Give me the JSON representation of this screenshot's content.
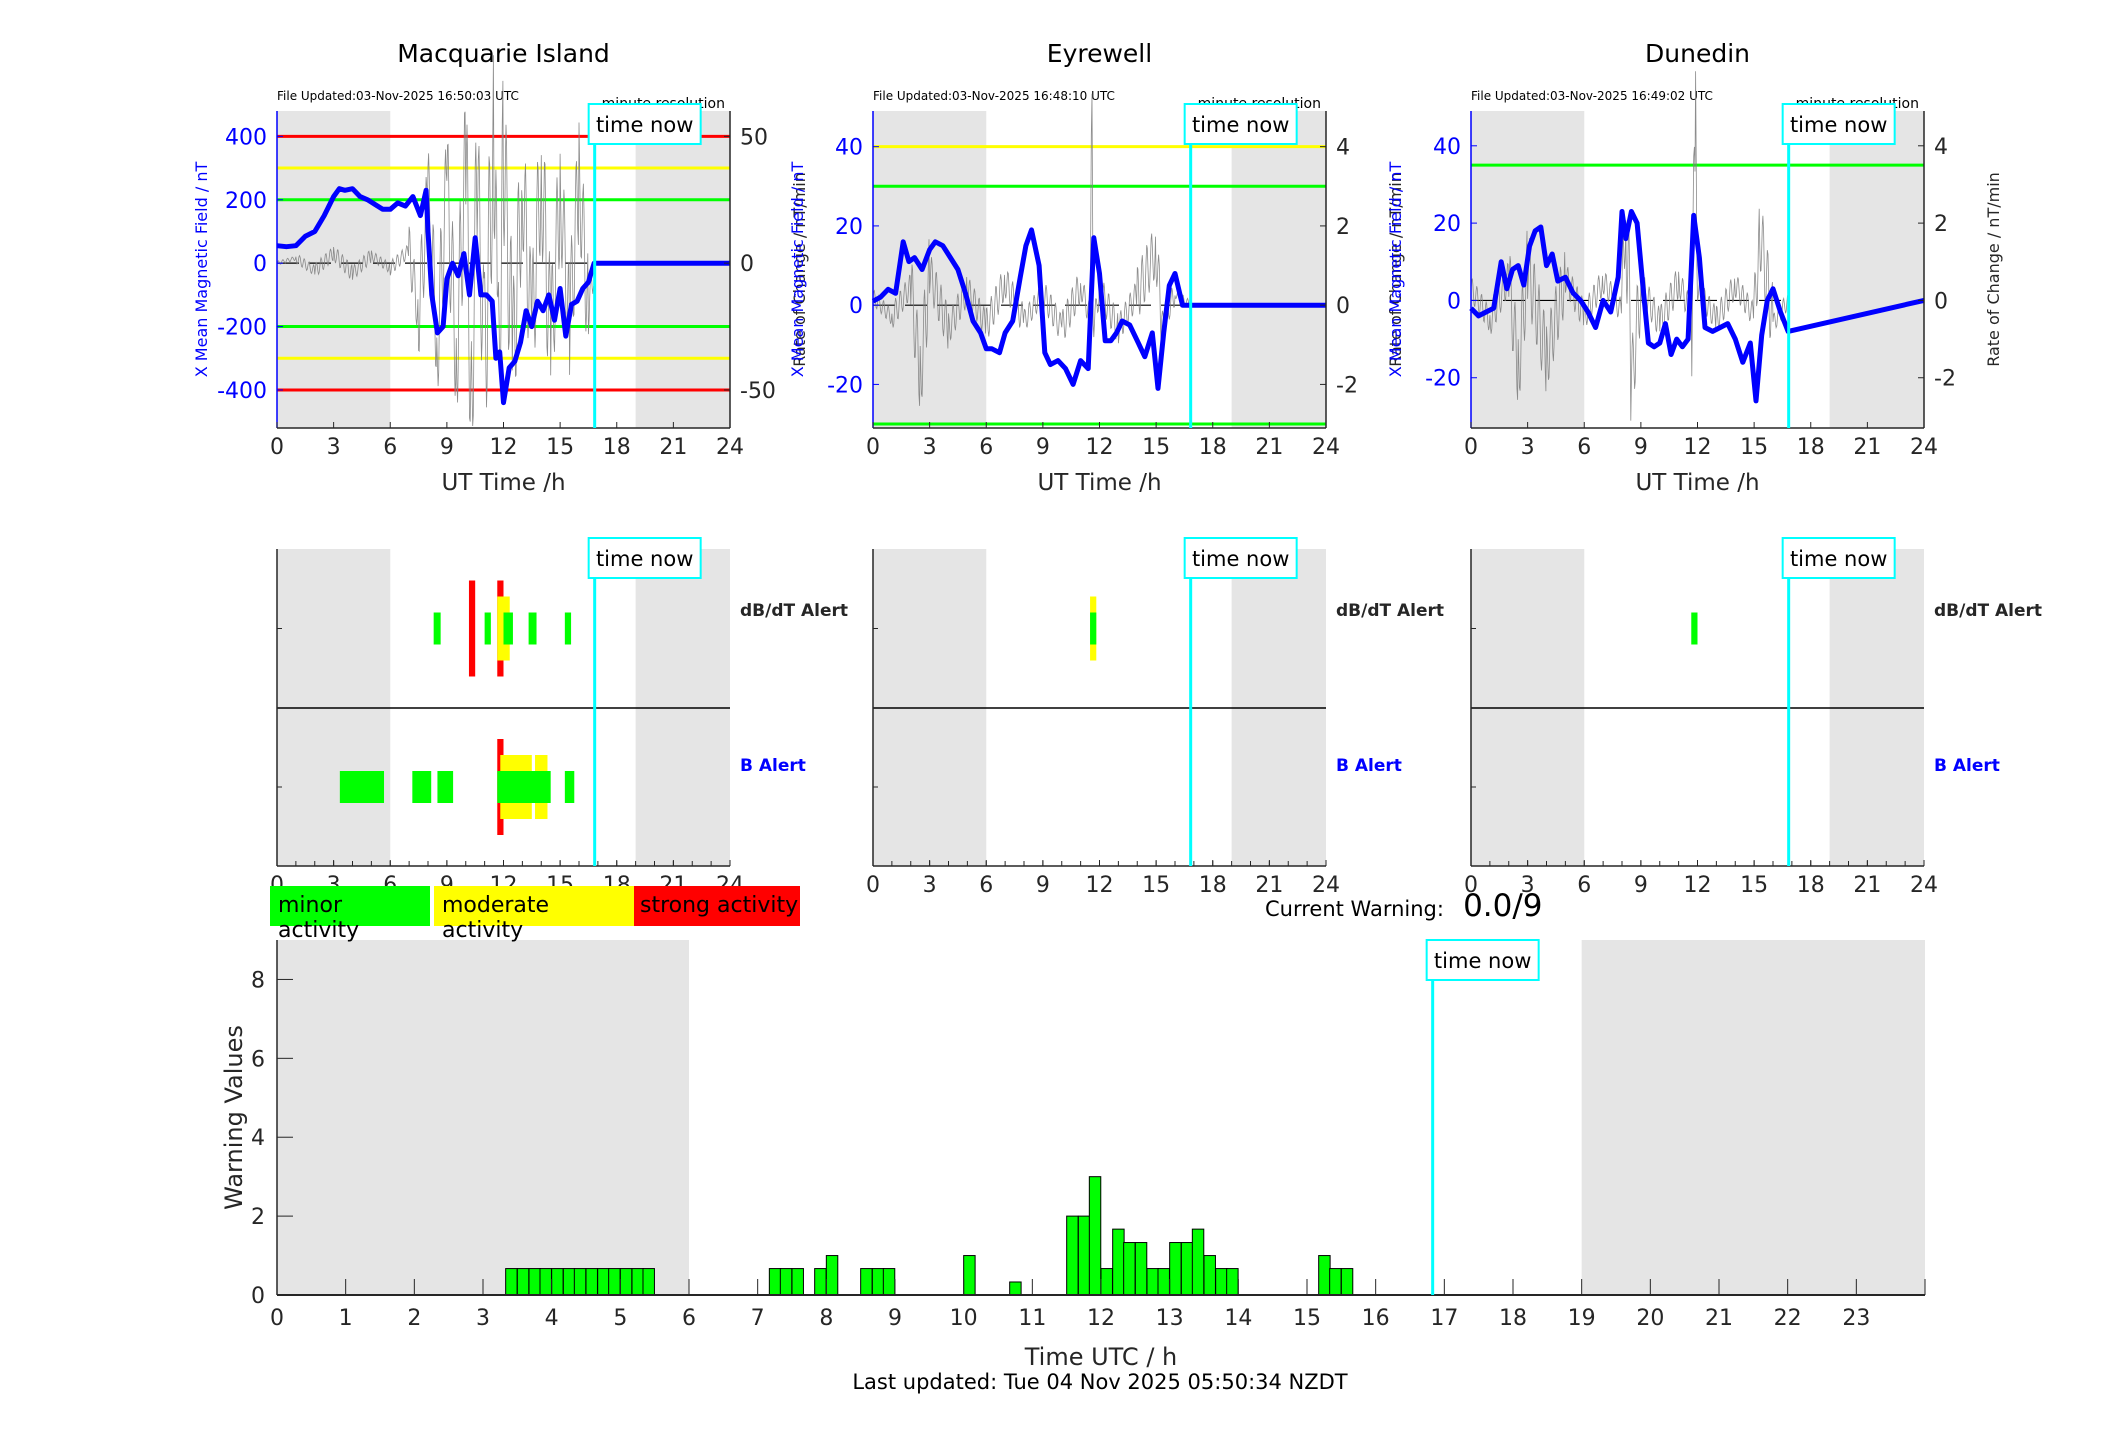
{
  "colors": {
    "field_line": "#0000ff",
    "rate_line": "#808080",
    "minor": "#00ff00",
    "moderate": "#ffff00",
    "strong": "#ff0000",
    "time_now": "#00ffff",
    "night_shade": "#e5e5e5"
  },
  "time_now_label": "time now",
  "minute_resolution_label": "minute resolution",
  "chart_data": [
    {
      "id": "macquarie-field",
      "type": "line",
      "title": "Macquarie Island",
      "file_updated": "File Updated:03-Nov-2025 16:50:03 UTC",
      "xlabel": "UT Time /h",
      "ylabel_left": "X Mean Magnetic Field / nT",
      "ylabel_right": "Rate of Change / nT/min",
      "xlim": [
        0,
        24
      ],
      "xticks": [
        "0",
        "3",
        "6",
        "9",
        "12",
        "15",
        "18",
        "21",
        "24"
      ],
      "ylim_left": [
        -520,
        480
      ],
      "yticks_left": [
        "400",
        "200",
        "0",
        "-200",
        "-400"
      ],
      "yticks_left_values": [
        400,
        200,
        0,
        -200,
        -400
      ],
      "ylim_right": [
        -65,
        60
      ],
      "yticks_right": [
        "50",
        "0",
        "-50"
      ],
      "yticks_right_values": [
        50,
        0,
        -50
      ],
      "night_shading_h": [
        [
          0,
          6
        ],
        [
          19,
          24
        ]
      ],
      "time_now_h": 16.83,
      "threshold_lines": [
        {
          "value": 400,
          "color": "strong"
        },
        {
          "value": 300,
          "color": "moderate"
        },
        {
          "value": 200,
          "color": "minor"
        },
        {
          "value": -200,
          "color": "minor"
        },
        {
          "value": -300,
          "color": "moderate"
        },
        {
          "value": -400,
          "color": "strong"
        }
      ],
      "field_series": {
        "x": [
          0,
          0.5,
          1,
          1.5,
          2,
          2.5,
          3,
          3.3,
          3.6,
          4,
          4.4,
          4.8,
          5.2,
          5.6,
          6,
          6.4,
          6.8,
          7.2,
          7.6,
          7.9,
          8.0,
          8.2,
          8.5,
          8.8,
          9.0,
          9.3,
          9.6,
          9.9,
          10.2,
          10.5,
          10.8,
          11.1,
          11.4,
          11.6,
          11.8,
          12.0,
          12.3,
          12.6,
          12.9,
          13.2,
          13.5,
          13.8,
          14.1,
          14.4,
          14.7,
          15.0,
          15.3,
          15.6,
          15.9,
          16.2,
          16.5,
          16.8,
          24
        ],
        "y": [
          55,
          52,
          55,
          85,
          100,
          150,
          210,
          235,
          230,
          235,
          210,
          200,
          185,
          170,
          170,
          190,
          180,
          210,
          150,
          230,
          100,
          -100,
          -220,
          -200,
          -50,
          0,
          -40,
          30,
          -100,
          80,
          -100,
          -100,
          -120,
          -300,
          -280,
          -440,
          -330,
          -310,
          -250,
          -150,
          -200,
          -120,
          -150,
          -100,
          -180,
          -80,
          -230,
          -130,
          -120,
          -80,
          -60,
          0,
          0
        ]
      },
      "rate_series": {
        "x": [
          0,
          1,
          2,
          3,
          4,
          5,
          6,
          7,
          7.5,
          8,
          8.5,
          9,
          9.5,
          10,
          10.3,
          10.6,
          11,
          11.5,
          11.7,
          12,
          12.5,
          13,
          13.5,
          14,
          14.5,
          15,
          15.5,
          16,
          16.5,
          16.8
        ],
        "y": [
          0,
          2,
          -3,
          4,
          -4,
          3,
          -2,
          5,
          -20,
          25,
          -30,
          30,
          -35,
          40,
          -55,
          35,
          -40,
          55,
          -50,
          45,
          -40,
          35,
          -30,
          40,
          -35,
          30,
          -25,
          35,
          -20,
          0
        ]
      }
    },
    {
      "id": "eyrewell-field",
      "type": "line",
      "title": "Eyrewell",
      "file_updated": "File Updated:03-Nov-2025 16:48:10 UTC",
      "xlabel": "UT Time /h",
      "ylabel_left": "X Mean Magnetic Field / nT",
      "ylabel_right": "Rate of Change / nT/min",
      "xlim": [
        0,
        24
      ],
      "xticks": [
        "0",
        "3",
        "6",
        "9",
        "12",
        "15",
        "18",
        "21",
        "24"
      ],
      "ylim_left": [
        -31,
        49
      ],
      "yticks_left": [
        "40",
        "20",
        "0",
        "-20"
      ],
      "yticks_left_values": [
        40,
        20,
        0,
        -20
      ],
      "ylim_right": [
        -3.1,
        4.9
      ],
      "yticks_right": [
        "4",
        "2",
        "0",
        "-2"
      ],
      "yticks_right_values": [
        4,
        2,
        0,
        -2
      ],
      "night_shading_h": [
        [
          0,
          6
        ],
        [
          19,
          24
        ]
      ],
      "time_now_h": 16.83,
      "threshold_lines": [
        {
          "value": 40,
          "color": "moderate"
        },
        {
          "value": 30,
          "color": "minor"
        },
        {
          "value": -30,
          "color": "minor"
        }
      ],
      "field_series": {
        "x": [
          0,
          0.4,
          0.8,
          1.2,
          1.6,
          1.9,
          2.2,
          2.6,
          3.0,
          3.3,
          3.7,
          4.1,
          4.5,
          4.9,
          5.3,
          5.7,
          6.0,
          6.3,
          6.7,
          7.0,
          7.4,
          7.8,
          8.1,
          8.4,
          8.8,
          9.1,
          9.4,
          9.8,
          10.2,
          10.6,
          11.0,
          11.4,
          11.7,
          12.0,
          12.3,
          12.6,
          12.9,
          13.2,
          13.6,
          14.0,
          14.4,
          14.8,
          15.1,
          15.4,
          15.7,
          16.0,
          16.4,
          16.8,
          24
        ],
        "y": [
          1,
          2,
          4,
          3,
          16,
          11,
          12,
          9,
          14,
          16,
          15,
          12,
          9,
          3,
          -4,
          -7,
          -11,
          -11,
          -12,
          -7,
          -4,
          7,
          15,
          19,
          10,
          -12,
          -15,
          -14,
          -16,
          -20,
          -14,
          -16,
          17,
          8,
          -9,
          -9,
          -7,
          -4,
          -5,
          -9,
          -13,
          -7,
          -21,
          -7,
          5,
          8,
          0,
          0,
          0
        ]
      },
      "rate_series": {
        "x": [
          0,
          1,
          2,
          2.5,
          3,
          4,
          5,
          6,
          7,
          8,
          9,
          10,
          11,
          11.5,
          11.6,
          11.7,
          12,
          13,
          14,
          15,
          15.3,
          16,
          16.8
        ],
        "y": [
          0.2,
          -0.3,
          0.5,
          -1.8,
          0.8,
          -0.6,
          0.4,
          -0.5,
          0.6,
          -0.4,
          0.3,
          -0.6,
          0.5,
          -0.3,
          4.1,
          -0.5,
          0.4,
          -0.6,
          0.3,
          1.4,
          -0.5,
          0.3,
          0
        ]
      }
    },
    {
      "id": "dunedin-field",
      "type": "line",
      "title": "Dunedin",
      "file_updated": "File Updated:03-Nov-2025 16:49:02 UTC",
      "xlabel": "UT Time /h",
      "ylabel_left": "X Mean Magnetic Field / nT",
      "ylabel_right": "Rate of Change / nT/min",
      "xlim": [
        0,
        24
      ],
      "xticks": [
        "0",
        "3",
        "6",
        "9",
        "12",
        "15",
        "18",
        "21",
        "24"
      ],
      "ylim_left": [
        -33,
        49
      ],
      "yticks_left": [
        "40",
        "20",
        "0",
        "-20"
      ],
      "yticks_left_values": [
        40,
        20,
        0,
        -20
      ],
      "ylim_right": [
        -3.3,
        4.9
      ],
      "yticks_right": [
        "4",
        "2",
        "0",
        "-2"
      ],
      "yticks_right_values": [
        4,
        2,
        0,
        -2
      ],
      "night_shading_h": [
        [
          0,
          6
        ],
        [
          19,
          24
        ]
      ],
      "time_now_h": 16.83,
      "threshold_lines": [
        {
          "value": 35,
          "color": "minor"
        }
      ],
      "field_series": {
        "x": [
          0,
          0.4,
          0.8,
          1.2,
          1.6,
          1.9,
          2.2,
          2.5,
          2.8,
          3.1,
          3.4,
          3.7,
          4.0,
          4.3,
          4.6,
          5.0,
          5.4,
          5.8,
          6.2,
          6.6,
          7.0,
          7.4,
          7.8,
          8.0,
          8.2,
          8.5,
          8.8,
          9.1,
          9.4,
          9.7,
          10.0,
          10.3,
          10.6,
          10.9,
          11.2,
          11.5,
          11.8,
          12.1,
          12.4,
          12.8,
          13.2,
          13.6,
          14.0,
          14.4,
          14.8,
          15.1,
          15.4,
          15.7,
          16.0,
          16.4,
          16.8,
          24
        ],
        "y": [
          -2,
          -4,
          -3,
          -2,
          10,
          3,
          8,
          9,
          4,
          14,
          18,
          19,
          9,
          12,
          5,
          6,
          2,
          0,
          -3,
          -7,
          0,
          -3,
          6,
          23,
          16,
          23,
          20,
          4,
          -11,
          -12,
          -11,
          -6,
          -14,
          -10,
          -12,
          -10,
          22,
          11,
          -7,
          -8,
          -7,
          -6,
          -10,
          -16,
          -11,
          -26,
          -9,
          0,
          3,
          -3,
          -8,
          0
        ]
      },
      "rate_series": {
        "x": [
          0,
          1,
          2,
          2.5,
          3,
          4,
          5,
          6,
          7,
          8,
          8.2,
          8.5,
          9,
          10,
          11,
          11.7,
          11.9,
          12,
          13,
          14,
          15,
          15.3,
          16,
          16.8
        ],
        "y": [
          0.3,
          -0.5,
          0.6,
          -1.8,
          0.9,
          -1.5,
          0.6,
          -0.4,
          0.5,
          -0.3,
          2.8,
          -2.2,
          0.4,
          -0.6,
          0.5,
          -0.4,
          4.2,
          0.3,
          -0.5,
          0.4,
          -0.4,
          1.8,
          -0.6,
          0
        ]
      }
    },
    {
      "id": "macquarie-alerts",
      "type": "table",
      "xticks": [
        "0",
        "3",
        "6",
        "9",
        "12",
        "15",
        "18",
        "21",
        "24"
      ],
      "xlim": [
        0,
        24
      ],
      "rows": [
        "dB/dT Alert",
        "B Alert"
      ],
      "dbdt_label": "dB/dT Alert",
      "b_label": "B Alert",
      "dbdt_segments": [
        {
          "start": 8.3,
          "end": 8.67,
          "level": "minor"
        },
        {
          "start": 10.17,
          "end": 10.5,
          "level": "strong"
        },
        {
          "start": 11.0,
          "end": 11.33,
          "level": "minor"
        },
        {
          "start": 11.67,
          "end": 12.0,
          "level": "strong"
        },
        {
          "start": 11.67,
          "end": 12.33,
          "level": "moderate"
        },
        {
          "start": 12.0,
          "end": 12.5,
          "level": "minor"
        },
        {
          "start": 13.33,
          "end": 13.75,
          "level": "minor"
        },
        {
          "start": 15.25,
          "end": 15.58,
          "level": "minor"
        }
      ],
      "b_segments": [
        {
          "start": 3.33,
          "end": 5.67,
          "level": "minor"
        },
        {
          "start": 7.17,
          "end": 8.17,
          "level": "minor"
        },
        {
          "start": 8.5,
          "end": 9.33,
          "level": "minor"
        },
        {
          "start": 11.67,
          "end": 12.0,
          "level": "strong"
        },
        {
          "start": 11.83,
          "end": 13.5,
          "level": "moderate"
        },
        {
          "start": 13.67,
          "end": 14.33,
          "level": "moderate"
        },
        {
          "start": 11.67,
          "end": 14.5,
          "level": "minor"
        },
        {
          "start": 15.25,
          "end": 15.75,
          "level": "minor"
        }
      ],
      "night_shading_h": [
        [
          0,
          6
        ],
        [
          19,
          24
        ]
      ],
      "time_now_h": 16.83
    },
    {
      "id": "eyrewell-alerts",
      "type": "table",
      "xticks": [
        "0",
        "3",
        "6",
        "9",
        "12",
        "15",
        "18",
        "21",
        "24"
      ],
      "xlim": [
        0,
        24
      ],
      "dbdt_label": "dB/dT Alert",
      "b_label": "B Alert",
      "dbdt_segments": [
        {
          "start": 11.5,
          "end": 11.83,
          "level": "moderate"
        },
        {
          "start": 11.5,
          "end": 11.83,
          "level": "minor"
        }
      ],
      "b_segments": [],
      "night_shading_h": [
        [
          0,
          6
        ],
        [
          19,
          24
        ]
      ],
      "time_now_h": 16.83
    },
    {
      "id": "dunedin-alerts",
      "type": "table",
      "xticks": [
        "0",
        "3",
        "6",
        "9",
        "12",
        "15",
        "18",
        "21",
        "24"
      ],
      "xlim": [
        0,
        24
      ],
      "dbdt_label": "dB/dT Alert",
      "b_label": "B Alert",
      "dbdt_segments": [
        {
          "start": 11.67,
          "end": 12.0,
          "level": "minor"
        }
      ],
      "b_segments": [],
      "night_shading_h": [
        [
          0,
          6
        ],
        [
          19,
          24
        ]
      ],
      "time_now_h": 16.83
    },
    {
      "id": "warning-values",
      "type": "bar",
      "xlabel": "Time UTC / h",
      "ylabel": "Warning Values",
      "xlim": [
        0,
        24
      ],
      "ylim": [
        0,
        9
      ],
      "xticks": [
        "0",
        "1",
        "2",
        "3",
        "4",
        "5",
        "6",
        "7",
        "8",
        "9",
        "10",
        "11",
        "12",
        "13",
        "14",
        "15",
        "16",
        "17",
        "18",
        "19",
        "20",
        "21",
        "22",
        "23"
      ],
      "yticks": [
        "0",
        "2",
        "4",
        "6",
        "8"
      ],
      "yticks_values": [
        0,
        2,
        4,
        6,
        8
      ],
      "bin_width_h": 0.1667,
      "x": [
        3.33,
        3.5,
        3.67,
        3.83,
        4.0,
        4.17,
        4.33,
        4.5,
        4.67,
        4.83,
        5.0,
        5.17,
        5.33,
        7.17,
        7.33,
        7.5,
        7.83,
        8.0,
        8.5,
        8.67,
        8.83,
        10.0,
        10.67,
        11.5,
        11.67,
        11.83,
        12.0,
        12.17,
        12.33,
        12.5,
        12.67,
        12.83,
        13.0,
        13.17,
        13.33,
        13.5,
        13.67,
        13.83,
        15.17,
        15.33,
        15.5
      ],
      "values": [
        0.67,
        0.67,
        0.67,
        0.67,
        0.67,
        0.67,
        0.67,
        0.67,
        0.67,
        0.67,
        0.67,
        0.67,
        0.67,
        0.67,
        0.67,
        0.67,
        0.67,
        1.0,
        0.67,
        0.67,
        0.67,
        1.0,
        0.33,
        2.0,
        2.0,
        3.0,
        0.67,
        1.67,
        1.33,
        1.33,
        0.67,
        0.67,
        1.33,
        1.33,
        1.67,
        1.0,
        0.67,
        0.67,
        1.0,
        0.67,
        0.67
      ],
      "night_shading_h": [
        [
          0,
          6
        ],
        [
          19,
          24
        ]
      ],
      "time_now_h": 16.83
    }
  ],
  "legend": {
    "minor": "minor activity",
    "moderate": "moderate activity",
    "strong": "strong activity"
  },
  "current_warning": {
    "label": "Current Warning:",
    "value": "0.0/9"
  },
  "footer": {
    "last_updated": "Last updated: Tue 04 Nov 2025 05:50:34 NZDT"
  }
}
